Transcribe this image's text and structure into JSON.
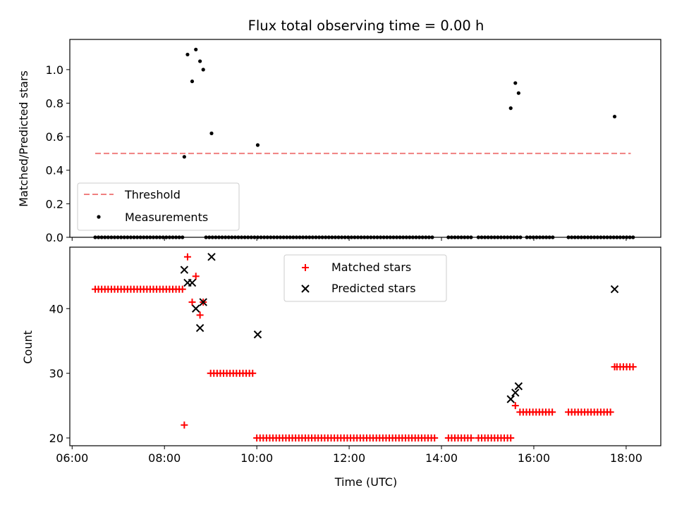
{
  "chart_data": [
    {
      "type": "scatter",
      "title": "Flux total observing time = 0.00 h",
      "xlabel": "",
      "ylabel": "Matched/Predicted stars",
      "xlim": [
        5.95,
        18.75
      ],
      "ylim": [
        0,
        1.18
      ],
      "x_ticks": [
        6,
        8,
        10,
        12,
        14,
        16,
        18
      ],
      "y_ticks": [
        0.0,
        0.2,
        0.4,
        0.6,
        0.8,
        1.0
      ],
      "y_tick_labels": [
        "0.0",
        "0.2",
        "0.4",
        "0.6",
        "0.8",
        "1.0"
      ],
      "legend_position": "lower-left",
      "threshold": {
        "name": "Threshold",
        "y": 0.5,
        "x": [
          6.5,
          18.1
        ],
        "color": "#f08080"
      },
      "measurements": {
        "name": "Measurements",
        "color": "#000000",
        "points": [
          [
            8.43,
            0.48
          ],
          [
            8.5,
            1.09
          ],
          [
            8.6,
            0.93
          ],
          [
            8.68,
            1.12
          ],
          [
            8.77,
            1.05
          ],
          [
            8.84,
            1.0
          ],
          [
            9.02,
            0.62
          ],
          [
            10.02,
            0.55
          ],
          [
            15.5,
            0.77
          ],
          [
            15.6,
            0.92
          ],
          [
            15.67,
            0.86
          ],
          [
            17.75,
            0.72
          ]
        ],
        "zero_x_ranges": [
          [
            6.5,
            8.4
          ],
          [
            8.9,
            13.85
          ],
          [
            14.15,
            14.65
          ],
          [
            14.8,
            15.75
          ],
          [
            15.85,
            16.45
          ],
          [
            16.75,
            18.2
          ]
        ],
        "zero_step": 0.07
      }
    },
    {
      "type": "scatter",
      "title": "",
      "xlabel": "Time (UTC)",
      "ylabel": "Count",
      "xlim": [
        5.95,
        18.75
      ],
      "ylim": [
        18.8,
        49.5
      ],
      "x_ticks": [
        6,
        8,
        10,
        12,
        14,
        16,
        18
      ],
      "x_tick_labels": [
        "06:00",
        "08:00",
        "10:00",
        "12:00",
        "14:00",
        "16:00",
        "18:00"
      ],
      "y_ticks": [
        20,
        30,
        40
      ],
      "y_tick_labels": [
        "20",
        "30",
        "40"
      ],
      "legend_position": "upper-center",
      "matched": {
        "name": "Matched stars",
        "color": "#ff0000",
        "points": [
          [
            8.43,
            22
          ],
          [
            8.5,
            48
          ],
          [
            8.6,
            41
          ],
          [
            8.68,
            45
          ],
          [
            8.77,
            39
          ],
          [
            8.84,
            41
          ],
          [
            15.6,
            25
          ],
          [
            17.75,
            31
          ]
        ],
        "runs": [
          {
            "from": 6.5,
            "to": 8.4,
            "y": 43
          },
          {
            "from": 9.0,
            "to": 9.95,
            "y": 30
          },
          {
            "from": 10.0,
            "to": 13.85,
            "y": 20
          },
          {
            "from": 14.15,
            "to": 14.65,
            "y": 20
          },
          {
            "from": 14.8,
            "to": 15.55,
            "y": 20
          },
          {
            "from": 15.7,
            "to": 16.45,
            "y": 24
          },
          {
            "from": 16.75,
            "to": 17.7,
            "y": 24
          },
          {
            "from": 17.8,
            "to": 18.2,
            "y": 31
          }
        ],
        "run_step": 0.07
      },
      "predicted": {
        "name": "Predicted stars",
        "color": "#000000",
        "points": [
          [
            8.43,
            46
          ],
          [
            8.5,
            44
          ],
          [
            8.6,
            44
          ],
          [
            8.68,
            40
          ],
          [
            8.77,
            37
          ],
          [
            8.84,
            41
          ],
          [
            9.02,
            48
          ],
          [
            10.02,
            36
          ],
          [
            15.5,
            26
          ],
          [
            15.6,
            27
          ],
          [
            15.67,
            28
          ],
          [
            17.75,
            43
          ]
        ]
      }
    }
  ]
}
